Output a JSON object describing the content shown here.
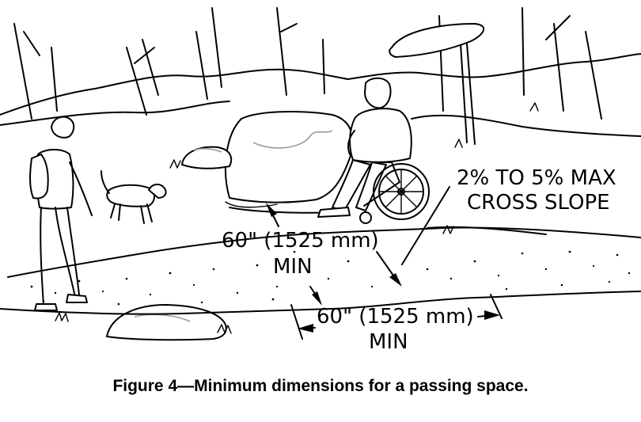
{
  "labels": {
    "slope_line1": "2% TO 5% MAX",
    "slope_line2": "CROSS SLOPE",
    "width_line1": "60\" (1525 mm)",
    "width_line2": "MIN",
    "length_line1": "60\" (1525 mm)",
    "length_line2": "MIN"
  },
  "caption": "Figure 4—Minimum dimensions for a passing space."
}
